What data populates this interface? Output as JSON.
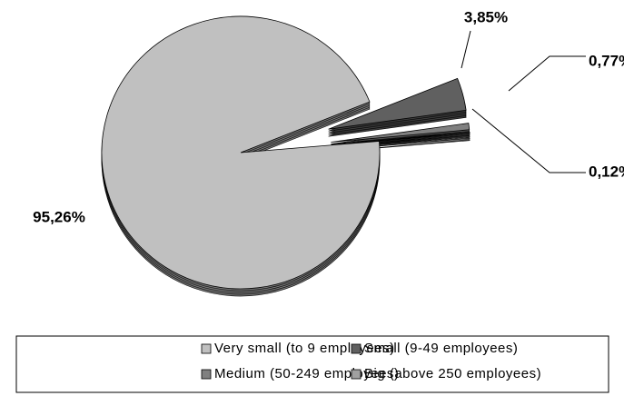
{
  "chart_data": {
    "type": "pie",
    "categories": [
      "Very small (to 9 employees)",
      "Small (9-49 employees)",
      "Medium (50-249 employees)",
      "Big (above 250 employees)"
    ],
    "values": [
      95.26,
      3.85,
      0.77,
      0.12
    ],
    "value_labels": [
      "95,26%",
      "3,85%",
      "0,77%",
      "0,12%"
    ],
    "colors": [
      "#c0c0c0",
      "#606060",
      "#808080",
      "#a0a0a0"
    ],
    "legend": "bottom"
  }
}
